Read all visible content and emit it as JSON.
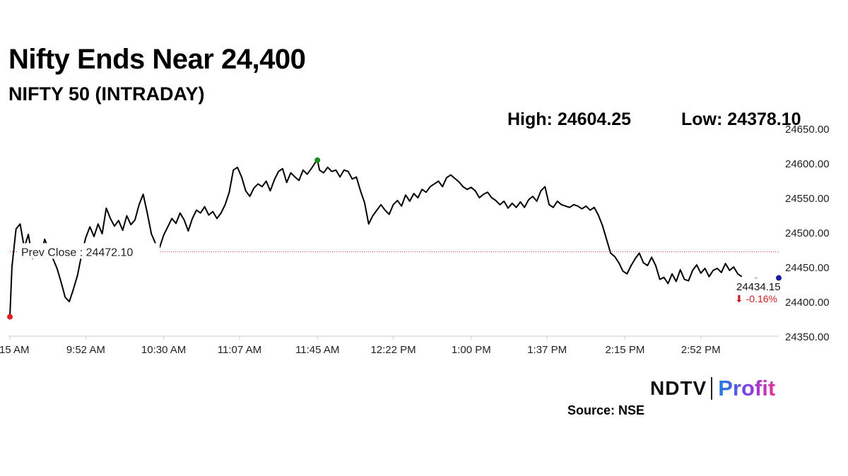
{
  "header": {
    "title": "Nifty Ends Near 24,400",
    "subtitle": "NIFTY 50 (INTRADAY)",
    "high_text": "High: 24604.25",
    "low_text": "Low: 24378.10"
  },
  "footer": {
    "logo_ndtv": "NDTV",
    "logo_profit": "Profit",
    "source": "Source: NSE"
  },
  "colors": {
    "line": "#000000",
    "prev_close": "#e03030",
    "open_marker": "#e02020",
    "high_marker": "#1a8c1a",
    "last_marker": "#1a1aa0",
    "change_negative": "#cc1f1f",
    "axis": "#cccccc"
  },
  "chart_data": {
    "type": "line",
    "x_ticks": [
      "9:15 AM",
      "9:52 AM",
      "10:30 AM",
      "11:07 AM",
      "11:45 AM",
      "12:22 PM",
      "1:00 PM",
      "1:37 PM",
      "2:15 PM",
      "2:52 PM"
    ],
    "y_ticks": [
      "24350.00",
      "24400.00",
      "24450.00",
      "24500.00",
      "24550.00",
      "24600.00",
      "24650.00"
    ],
    "ylim": [
      24350,
      24650
    ],
    "x_start": "9:15 AM",
    "x_end": "3:30 PM",
    "prev_close": {
      "value": 24472.1,
      "label": "Prev Close : 24472.10"
    },
    "last": {
      "value": 24434.15,
      "label": "24434.15",
      "change": "-0.16%",
      "change_arrow": "⬇"
    },
    "markers": [
      {
        "name": "open",
        "time": "9:15 AM",
        "value": 24378
      },
      {
        "name": "high",
        "time": "11:45 AM",
        "value": 24604.25
      },
      {
        "name": "last",
        "time": "3:30 PM",
        "value": 24434.15
      }
    ],
    "series": [
      {
        "values": [
          [
            "9:15",
            24378
          ],
          [
            "9:16",
            24450
          ],
          [
            "9:18",
            24505
          ],
          [
            "9:20",
            24512
          ],
          [
            "9:22",
            24478
          ],
          [
            "9:24",
            24497
          ],
          [
            "9:26",
            24462
          ],
          [
            "9:28",
            24482
          ],
          [
            "9:30",
            24466
          ],
          [
            "9:32",
            24490
          ],
          [
            "9:34",
            24474
          ],
          [
            "9:36",
            24462
          ],
          [
            "9:38",
            24448
          ],
          [
            "9:40",
            24428
          ],
          [
            "9:42",
            24406
          ],
          [
            "9:44",
            24400
          ],
          [
            "9:46",
            24418
          ],
          [
            "9:48",
            24438
          ],
          [
            "9:50",
            24468
          ],
          [
            "9:52",
            24492
          ],
          [
            "9:54",
            24508
          ],
          [
            "9:56",
            24494
          ],
          [
            "9:58",
            24512
          ],
          [
            "10:00",
            24498
          ],
          [
            "10:02",
            24535
          ],
          [
            "10:04",
            24520
          ],
          [
            "10:06",
            24509
          ],
          [
            "10:08",
            24517
          ],
          [
            "10:10",
            24503
          ],
          [
            "10:12",
            24524
          ],
          [
            "10:14",
            24511
          ],
          [
            "10:16",
            24518
          ],
          [
            "10:18",
            24540
          ],
          [
            "10:20",
            24555
          ],
          [
            "10:22",
            24528
          ],
          [
            "10:24",
            24498
          ],
          [
            "10:26",
            24484
          ],
          [
            "10:28",
            24478
          ],
          [
            "10:30",
            24496
          ],
          [
            "10:32",
            24508
          ],
          [
            "10:34",
            24520
          ],
          [
            "10:36",
            24513
          ],
          [
            "10:38",
            24528
          ],
          [
            "10:40",
            24518
          ],
          [
            "10:42",
            24502
          ],
          [
            "10:44",
            24520
          ],
          [
            "10:46",
            24532
          ],
          [
            "10:48",
            24528
          ],
          [
            "10:50",
            24537
          ],
          [
            "10:52",
            24525
          ],
          [
            "10:54",
            24530
          ],
          [
            "10:56",
            24520
          ],
          [
            "10:58",
            24528
          ],
          [
            "11:00",
            24540
          ],
          [
            "11:02",
            24558
          ],
          [
            "11:04",
            24590
          ],
          [
            "11:06",
            24594
          ],
          [
            "11:08",
            24580
          ],
          [
            "11:10",
            24560
          ],
          [
            "11:12",
            24552
          ],
          [
            "11:14",
            24564
          ],
          [
            "11:16",
            24570
          ],
          [
            "11:18",
            24566
          ],
          [
            "11:20",
            24574
          ],
          [
            "11:22",
            24560
          ],
          [
            "11:24",
            24576
          ],
          [
            "11:26",
            24588
          ],
          [
            "11:28",
            24592
          ],
          [
            "11:30",
            24572
          ],
          [
            "11:32",
            24586
          ],
          [
            "11:34",
            24580
          ],
          [
            "11:36",
            24575
          ],
          [
            "11:38",
            24590
          ],
          [
            "11:40",
            24584
          ],
          [
            "11:42",
            24592
          ],
          [
            "11:44",
            24601
          ],
          [
            "11:45",
            24604.25
          ],
          [
            "11:46",
            24590
          ],
          [
            "11:48",
            24586
          ],
          [
            "11:50",
            24594
          ],
          [
            "11:52",
            24588
          ],
          [
            "11:54",
            24590
          ],
          [
            "11:56",
            24580
          ],
          [
            "11:58",
            24590
          ],
          [
            "12:00",
            24588
          ],
          [
            "12:02",
            24577
          ],
          [
            "12:04",
            24580
          ],
          [
            "12:06",
            24560
          ],
          [
            "12:08",
            24543
          ],
          [
            "12:10",
            24512
          ],
          [
            "12:12",
            24524
          ],
          [
            "12:14",
            24532
          ],
          [
            "12:16",
            24540
          ],
          [
            "12:18",
            24532
          ],
          [
            "12:20",
            24526
          ],
          [
            "12:22",
            24540
          ],
          [
            "12:24",
            24546
          ],
          [
            "12:26",
            24538
          ],
          [
            "12:28",
            24554
          ],
          [
            "12:30",
            24545
          ],
          [
            "12:32",
            24556
          ],
          [
            "12:34",
            24550
          ],
          [
            "12:36",
            24562
          ],
          [
            "12:38",
            24558
          ],
          [
            "12:40",
            24566
          ],
          [
            "12:42",
            24570
          ],
          [
            "12:44",
            24574
          ],
          [
            "12:46",
            24566
          ],
          [
            "12:48",
            24579
          ],
          [
            "12:50",
            24583
          ],
          [
            "12:52",
            24578
          ],
          [
            "12:54",
            24573
          ],
          [
            "12:56",
            24566
          ],
          [
            "12:58",
            24562
          ],
          [
            "13:00",
            24565
          ],
          [
            "13:02",
            24560
          ],
          [
            "13:04",
            24550
          ],
          [
            "13:06",
            24555
          ],
          [
            "13:08",
            24558
          ],
          [
            "13:10",
            24550
          ],
          [
            "13:12",
            24546
          ],
          [
            "13:14",
            24540
          ],
          [
            "13:16",
            24545
          ],
          [
            "13:18",
            24535
          ],
          [
            "13:20",
            24542
          ],
          [
            "13:22",
            24536
          ],
          [
            "13:24",
            24544
          ],
          [
            "13:26",
            24536
          ],
          [
            "13:28",
            24547
          ],
          [
            "13:30",
            24552
          ],
          [
            "13:32",
            24545
          ],
          [
            "13:34",
            24560
          ],
          [
            "13:36",
            24566
          ],
          [
            "13:38",
            24540
          ],
          [
            "13:40",
            24536
          ],
          [
            "13:42",
            24545
          ],
          [
            "13:44",
            24540
          ],
          [
            "13:46",
            24538
          ],
          [
            "13:48",
            24536
          ],
          [
            "13:50",
            24540
          ],
          [
            "13:52",
            24538
          ],
          [
            "13:54",
            24534
          ],
          [
            "13:56",
            24538
          ],
          [
            "13:58",
            24532
          ],
          [
            "14:00",
            24536
          ],
          [
            "14:02",
            24525
          ],
          [
            "14:04",
            24510
          ],
          [
            "14:06",
            24490
          ],
          [
            "14:08",
            24470
          ],
          [
            "14:10",
            24465
          ],
          [
            "14:12",
            24456
          ],
          [
            "14:14",
            24444
          ],
          [
            "14:16",
            24440
          ],
          [
            "14:18",
            24452
          ],
          [
            "14:20",
            24462
          ],
          [
            "14:22",
            24470
          ],
          [
            "14:24",
            24456
          ],
          [
            "14:26",
            24452
          ],
          [
            "14:28",
            24464
          ],
          [
            "14:30",
            24452
          ],
          [
            "14:32",
            24432
          ],
          [
            "14:34",
            24435
          ],
          [
            "14:36",
            24426
          ],
          [
            "14:38",
            24440
          ],
          [
            "14:40",
            24429
          ],
          [
            "14:42",
            24446
          ],
          [
            "14:44",
            24432
          ],
          [
            "14:46",
            24430
          ],
          [
            "14:48",
            24445
          ],
          [
            "14:50",
            24453
          ],
          [
            "14:52",
            24441
          ],
          [
            "14:54",
            24448
          ],
          [
            "14:56",
            24436
          ],
          [
            "14:58",
            24445
          ],
          [
            "15:00",
            24448
          ],
          [
            "15:02",
            24442
          ],
          [
            "15:04",
            24455
          ],
          [
            "15:06",
            24445
          ],
          [
            "15:08",
            24450
          ],
          [
            "15:10",
            24440
          ],
          [
            "15:12",
            24436
          ]
        ]
      }
    ]
  }
}
